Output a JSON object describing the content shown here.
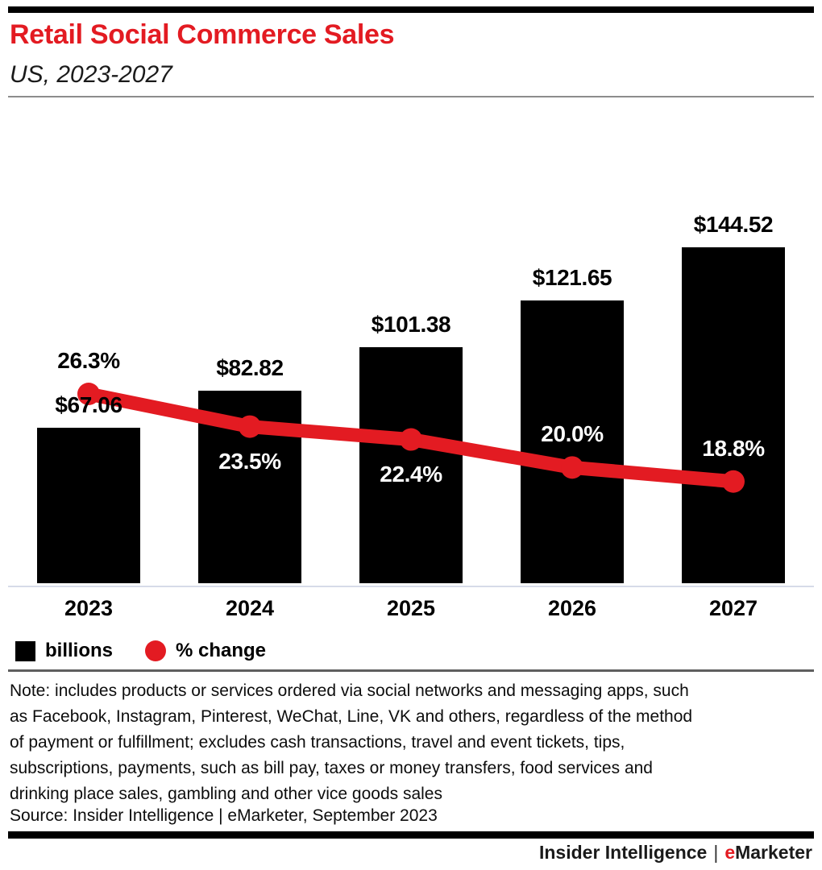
{
  "page": {
    "title": "Retail Social Commerce Sales",
    "subtitle": "US, 2023-2027"
  },
  "chart_data": {
    "type": "bar",
    "title": "Retail Social Commerce Sales",
    "subtitle": "US, 2023-2027",
    "categories": [
      "2023",
      "2024",
      "2025",
      "2026",
      "2027"
    ],
    "series": [
      {
        "name": "billions",
        "type": "bar",
        "color": "#000000",
        "values": [
          67.06,
          82.82,
          101.38,
          121.65,
          144.52
        ],
        "labels": [
          "$67.06",
          "$82.82",
          "$101.38",
          "$121.65",
          "$144.52"
        ]
      },
      {
        "name": "% change",
        "type": "line",
        "color": "#e31b22",
        "values": [
          26.3,
          23.5,
          22.4,
          20.0,
          18.8
        ],
        "labels": [
          "26.3%",
          "23.5%",
          "22.4%",
          "20.0%",
          "18.8%"
        ],
        "label_styles": [
          "black-above",
          "white-below",
          "white-below",
          "white-above",
          "white-above"
        ]
      }
    ],
    "xlabel": "",
    "ylabel": "",
    "ylim": [
      0,
      150
    ],
    "grid": false,
    "legend_position": "bottom-left"
  },
  "legend": {
    "items": [
      {
        "label": "billions",
        "swatch": "square",
        "color": "#000000"
      },
      {
        "label": "% change",
        "swatch": "circle",
        "color": "#e31b22"
      }
    ]
  },
  "note": {
    "lines": [
      "Note: includes products or services ordered via social networks and messaging apps, such",
      "as Facebook, Instagram, Pinterest, WeChat, Line, VK and others, regardless of the method",
      "of payment or fulfillment; excludes cash transactions, travel and event tickets, tips,",
      "subscriptions, payments, such as bill pay, taxes or money transfers, food services and",
      "drinking place sales, gambling and other vice goods sales"
    ]
  },
  "source": {
    "text": "Source: Insider Intelligence | eMarketer, September 2023"
  },
  "footer": {
    "left": "Insider Intelligence",
    "separator": "|",
    "emphasis": "e",
    "rest": "Marketer"
  },
  "colors": {
    "accent": "#e31b22",
    "bar": "#000000",
    "axis_line": "#d6dbe8",
    "divider_top": "#8c8c8c",
    "divider_bottom": "#5f5f5f"
  }
}
